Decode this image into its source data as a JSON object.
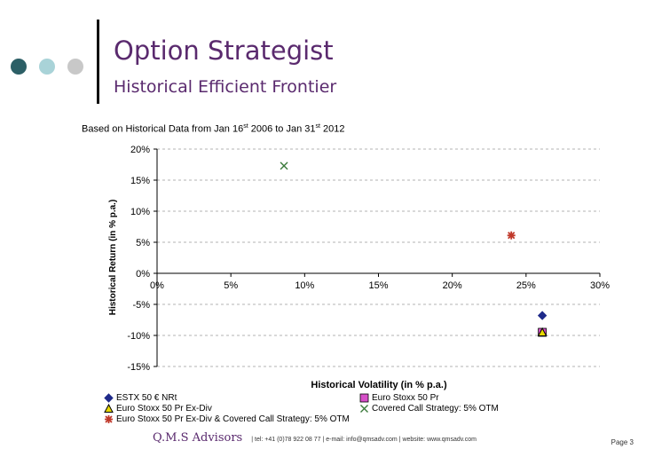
{
  "header": {
    "title": "Option Strategist",
    "subtitle": "Historical Efficient Frontier",
    "dot_colors": [
      "#2c5f66",
      "#a9d3d8",
      "#c8c8c8"
    ]
  },
  "note": {
    "prefix": "Based on Historical Data from Jan 16",
    "sup1": "st",
    "middle": " 2006 to Jan 31",
    "sup2": "st",
    "suffix": " 2012"
  },
  "chart_data": {
    "type": "scatter",
    "xlabel": "Historical Volatility (in % p.a.)",
    "ylabel": "Historical Return (in % p.a.)",
    "xlim": [
      0,
      30
    ],
    "ylim": [
      -15,
      20
    ],
    "x_ticks": [
      0,
      5,
      10,
      15,
      20,
      25,
      30
    ],
    "y_ticks": [
      20,
      15,
      10,
      5,
      0,
      -5,
      -10,
      -15
    ],
    "x_tick_labels": [
      "0%",
      "5%",
      "10%",
      "15%",
      "20%",
      "25%",
      "30%"
    ],
    "y_tick_labels": [
      "20%",
      "15%",
      "10%",
      "5%",
      "0%",
      "-5%",
      "-10%",
      "-15%"
    ],
    "grid": "horizontal dashed",
    "legend_position": "bottom",
    "series": [
      {
        "name": "ESTX 50 € NRt",
        "marker": "diamond",
        "color": "#1f2a8a",
        "points": [
          {
            "x": 26.1,
            "y": -6.8
          }
        ]
      },
      {
        "name": "Euro Stoxx 50 Pr",
        "marker": "square",
        "color": "#d64fc8",
        "points": [
          {
            "x": 26.1,
            "y": -9.5
          }
        ]
      },
      {
        "name": "Euro Stoxx 50 Pr Ex-Div",
        "marker": "triangle",
        "color": "#e8d800",
        "points": [
          {
            "x": 26.1,
            "y": -9.5
          }
        ]
      },
      {
        "name": "Covered Call Strategy: 5% OTM",
        "marker": "x",
        "color": "#3a7a3a",
        "points": [
          {
            "x": 8.6,
            "y": 17.3
          }
        ]
      },
      {
        "name": "Euro Stoxx 50 Pr Ex-Div & Covered Call Strategy: 5% OTM",
        "marker": "asterisk",
        "color": "#c0392b",
        "points": [
          {
            "x": 24.0,
            "y": 6.1
          }
        ]
      }
    ]
  },
  "footer": {
    "brand": "Q.M.S Advisors",
    "contact": "| tel: +41 (0)78 922 08 77 | e-mail: info@qmsadv.com | website: www.qmsadv.com",
    "page": "Page 3"
  }
}
